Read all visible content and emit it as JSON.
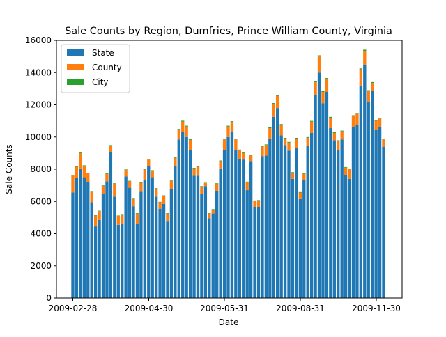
{
  "chart_data": {
    "type": "bar",
    "stacked": true,
    "title": "Sale Counts by Region, Dumfries, Prince William County, Virginia",
    "xlabel": "Date",
    "ylabel": "Sale Counts",
    "ylim": [
      0,
      16000
    ],
    "yticks": [
      0,
      2000,
      4000,
      6000,
      8000,
      10000,
      12000,
      14000,
      16000
    ],
    "xtick_labels": [
      "2009-02-28",
      "2009-04-30",
      "2009-05-31",
      "2009-08-31",
      "2009-11-30"
    ],
    "legend_position": "top-left",
    "colors": {
      "State": "#1f77b4",
      "County": "#ff7f0e",
      "City": "#2ca02c"
    },
    "series": [
      {
        "name": "State",
        "values": [
          6550,
          7450,
          8050,
          7500,
          7200,
          5950,
          4450,
          4850,
          6450,
          7250,
          9050,
          6300,
          4550,
          4600,
          7550,
          6850,
          5700,
          4600,
          6600,
          7350,
          8200,
          7500,
          6300,
          5550,
          5850,
          4750,
          6750,
          8200,
          9850,
          10300,
          10000,
          9200,
          7600,
          7600,
          6450,
          6950,
          4950,
          5250,
          6650,
          8050,
          9200,
          10000,
          10350,
          9200,
          8650,
          8600,
          6700,
          8500,
          5650,
          5650,
          8800,
          8850,
          9900,
          11250,
          11800,
          10100,
          9500,
          9150,
          7400,
          9300,
          6150,
          7350,
          9450,
          10250,
          12600,
          14000,
          12100,
          12800,
          10550,
          9800,
          9200,
          9850,
          7650,
          7400,
          10600,
          10750,
          13200,
          14500,
          12150,
          12850,
          10450,
          10650,
          9400
        ]
      },
      {
        "name": "County",
        "values": [
          1050,
          700,
          950,
          700,
          550,
          620,
          670,
          550,
          520,
          450,
          400,
          800,
          550,
          550,
          400,
          400,
          450,
          650,
          550,
          630,
          400,
          400,
          500,
          400,
          500,
          500,
          520,
          500,
          600,
          650,
          650,
          620,
          450,
          550,
          470,
          180,
          300,
          250,
          450,
          450,
          650,
          650,
          580,
          650,
          530,
          400,
          500,
          350,
          380,
          400,
          600,
          650,
          650,
          800,
          750,
          650,
          400,
          500,
          380,
          600,
          400,
          350,
          500,
          700,
          800,
          1000,
          700,
          800,
          650,
          450,
          550,
          500,
          450,
          600,
          700,
          700,
          1000,
          850,
          700,
          500,
          550,
          500,
          450
        ]
      },
      {
        "name": "City",
        "values": [
          30,
          40,
          50,
          40,
          30,
          30,
          25,
          25,
          30,
          35,
          45,
          30,
          25,
          25,
          35,
          30,
          25,
          25,
          30,
          35,
          45,
          35,
          30,
          25,
          25,
          25,
          30,
          40,
          50,
          60,
          50,
          45,
          35,
          35,
          30,
          25,
          25,
          25,
          30,
          40,
          45,
          50,
          50,
          45,
          40,
          40,
          30,
          40,
          30,
          30,
          40,
          40,
          50,
          55,
          60,
          50,
          45,
          45,
          35,
          45,
          30,
          35,
          45,
          50,
          60,
          70,
          55,
          60,
          50,
          45,
          45,
          45,
          35,
          35,
          50,
          50,
          60,
          70,
          55,
          60,
          50,
          50,
          45
        ]
      }
    ]
  }
}
